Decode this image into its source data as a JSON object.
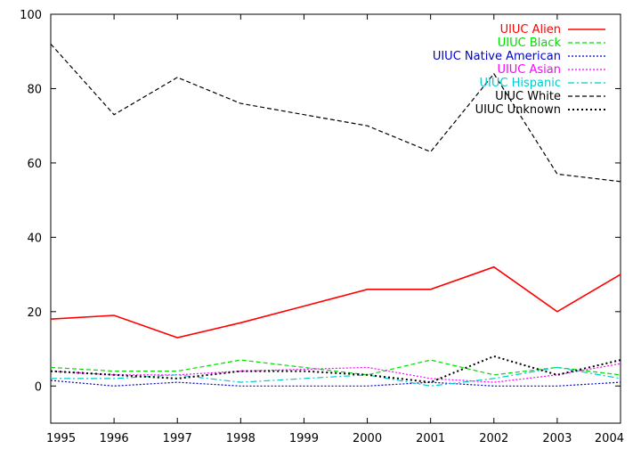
{
  "chart_data": {
    "type": "line",
    "title": "",
    "xlabel": "",
    "ylabel": "",
    "xlim": [
      1995,
      2004
    ],
    "ylim": [
      -10,
      100
    ],
    "x": [
      1995,
      1996,
      1997,
      1998,
      1999,
      2000,
      2001,
      2002,
      2003,
      2004
    ],
    "xticks": [
      "1995",
      "1996",
      "1997",
      "1998",
      "1999",
      "2000",
      "2001",
      "2002",
      "2003",
      "2004"
    ],
    "yticks": [
      0,
      20,
      40,
      60,
      80,
      100
    ],
    "grid": false,
    "legend_position": "top-right",
    "series": [
      {
        "name": "UIUC Alien",
        "color": "#ff0000",
        "dash": "solid",
        "values": [
          18,
          19,
          13,
          17,
          21.5,
          26,
          26,
          32,
          20,
          30
        ]
      },
      {
        "name": "UIUC Black",
        "color": "#00dd00",
        "dash": "dashed",
        "values": [
          5,
          4,
          4,
          7,
          5,
          3,
          7,
          3,
          5,
          3
        ]
      },
      {
        "name": "UIUC Native American",
        "color": "#0000cc",
        "dash": "dotted",
        "values": [
          1.5,
          0,
          1,
          0,
          0,
          0,
          1,
          0,
          0,
          1
        ]
      },
      {
        "name": "UIUC Asian",
        "color": "#ff00ff",
        "dash": "dotted",
        "values": [
          4,
          3,
          3,
          4,
          4.5,
          5,
          2,
          1,
          3,
          6
        ]
      },
      {
        "name": "UIUC Hispanic",
        "color": "#00cccc",
        "dash": "dashdot",
        "values": [
          2,
          2,
          3,
          1,
          2,
          3,
          0,
          2,
          5,
          2
        ]
      },
      {
        "name": "UIUC White",
        "color": "#000000",
        "dash": "dashed",
        "values": [
          92,
          73,
          83,
          76,
          73,
          70,
          63,
          84,
          57,
          55
        ]
      },
      {
        "name": "UIUC Unknown",
        "color": "#000000",
        "dash": "dotted-heavy",
        "values": [
          4,
          3,
          2,
          4,
          4,
          3,
          1,
          8,
          3,
          7
        ]
      }
    ]
  }
}
